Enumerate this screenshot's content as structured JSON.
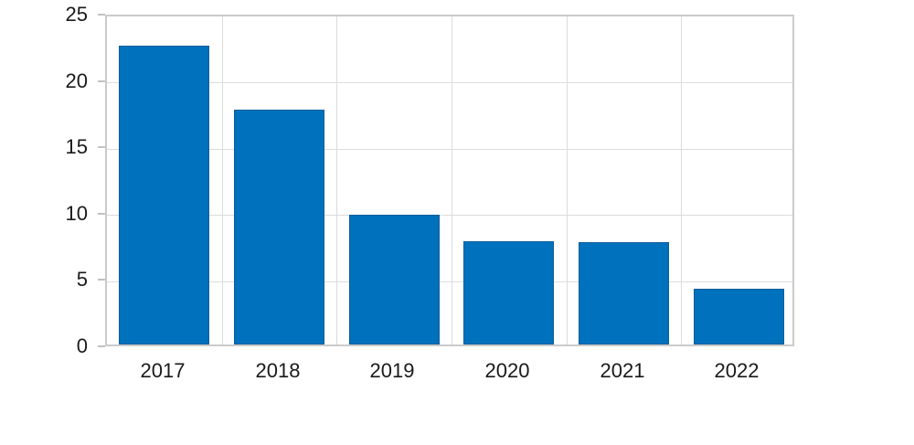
{
  "chart_data": {
    "type": "bar",
    "title": "",
    "xlabel": "",
    "ylabel": "",
    "categories": [
      "2017",
      "2018",
      "2019",
      "2020",
      "2021",
      "2022"
    ],
    "values": [
      22.5,
      17.7,
      9.8,
      7.8,
      7.7,
      4.2
    ],
    "ylim": [
      0,
      25
    ],
    "y_ticks": [
      0,
      5,
      10,
      15,
      20,
      25
    ],
    "grid": true,
    "legend": "none",
    "bar_color": "#0071bc",
    "bar_edge_color": "#0c5d9c"
  },
  "style": {
    "background": "#ffffff",
    "grid_color": "#dcdcdc",
    "frame_color": "#cbcbcb",
    "tick_color": "#c2c2c2",
    "text_color": "#1a1a1a"
  }
}
